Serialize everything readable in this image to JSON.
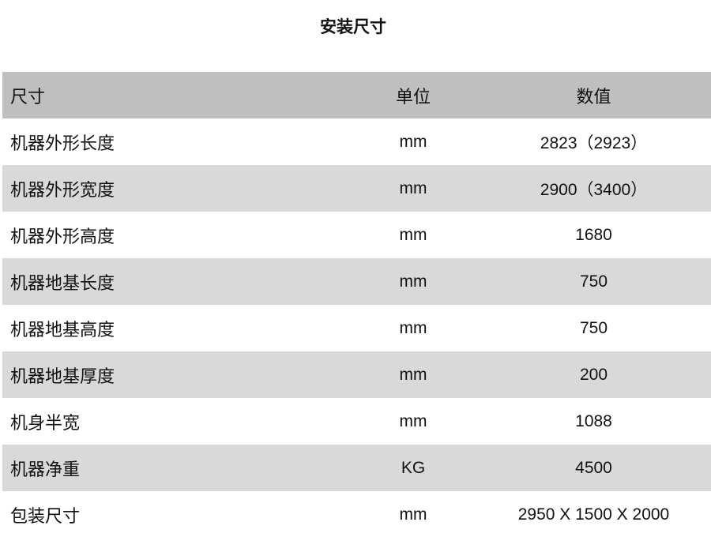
{
  "title": "安装尺寸",
  "colors": {
    "header_bg": "#bfbfbf",
    "stripe_bg": "#d9d9d9"
  },
  "headers": [
    "尺寸",
    "单位",
    "数值"
  ],
  "rows": [
    [
      "机器外形长度",
      "mm",
      "2823（2923）"
    ],
    [
      "机器外形宽度",
      "mm",
      "2900（3400）"
    ],
    [
      "机器外形高度",
      "mm",
      "1680"
    ],
    [
      "机器地基长度",
      "mm",
      "750"
    ],
    [
      "机器地基高度",
      "mm",
      "750"
    ],
    [
      "机器地基厚度",
      "mm",
      "200"
    ],
    [
      "机身半宽",
      "mm",
      "1088"
    ],
    [
      "机器净重",
      "KG",
      "4500"
    ],
    [
      "包装尺寸",
      "mm",
      "2950 X 1500 X 2000"
    ]
  ]
}
